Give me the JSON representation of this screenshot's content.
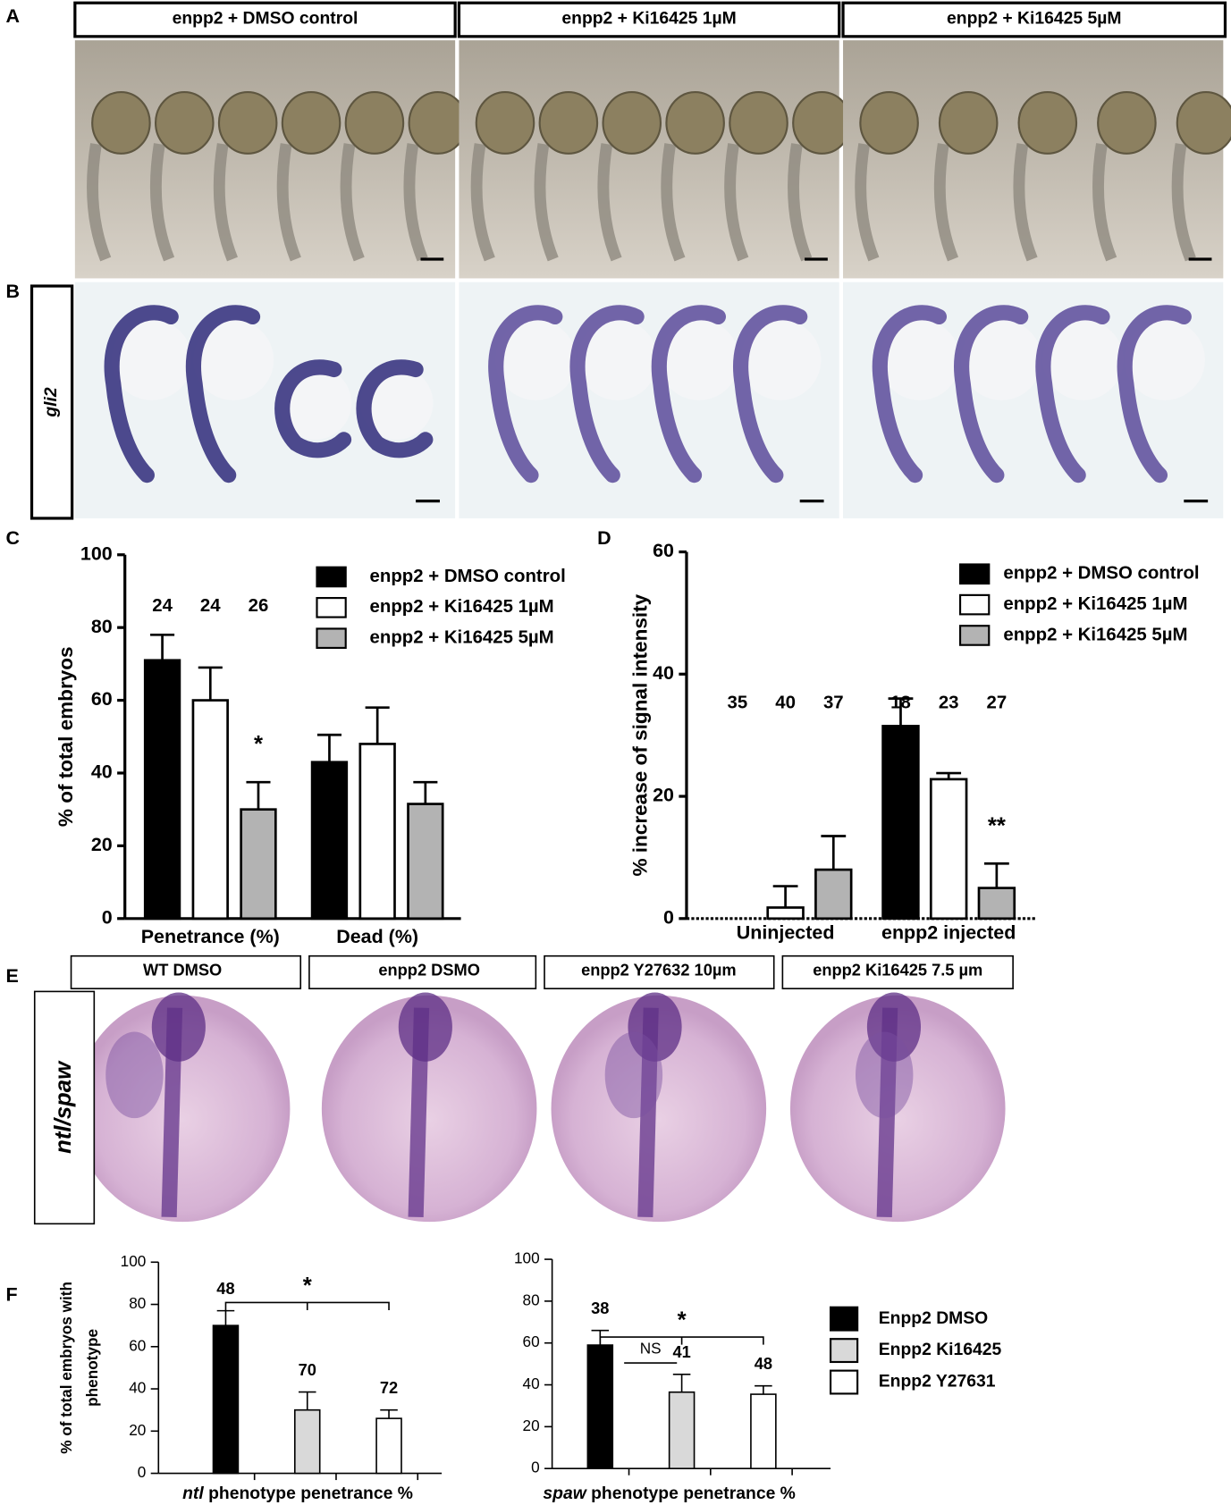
{
  "panels": {
    "labels": [
      "A",
      "B",
      "C",
      "D",
      "E",
      "F"
    ]
  },
  "panel_a": {
    "conditions": [
      "enpp2 + DMSO control",
      "enpp2  + Ki16425 1µM",
      "enpp2 +  Ki16425 5µM"
    ]
  },
  "panel_b": {
    "probe": "gli2"
  },
  "panel_e": {
    "conditions": [
      "WT DMSO",
      "enpp2 DSMO",
      "enpp2 Y27632 10µm",
      "enpp2  Ki16425 7.5 µm"
    ],
    "probe": "ntl/spaw"
  },
  "chart_data": [
    {
      "type": "bar",
      "ylabel": "% of total embryos",
      "categories": [
        "Penetrance (%)",
        "Dead (%)"
      ],
      "ylim": [
        0,
        100
      ],
      "yticks": [
        0,
        20,
        40,
        60,
        80,
        100
      ],
      "legend": true,
      "series": [
        {
          "name": "enpp2  + DMSO control",
          "color": "#000000",
          "values": [
            71,
            43
          ],
          "errors": [
            7,
            7.5
          ],
          "n": [
            24,
            null
          ]
        },
        {
          "name": "enpp2  + Ki16425 1µM",
          "color": "#ffffff",
          "values": [
            60,
            48
          ],
          "errors": [
            9,
            10
          ],
          "n": [
            24,
            null
          ]
        },
        {
          "name": "enpp2 +  Ki16425 5µM",
          "color": "#b3b3b3",
          "values": [
            30,
            31.5
          ],
          "errors": [
            7.5,
            6
          ],
          "n": [
            26,
            null
          ],
          "significance": [
            "*",
            null
          ]
        }
      ]
    },
    {
      "type": "bar",
      "ylabel": "% increase of signal intensity",
      "categories": [
        "Uninjected",
        "enpp2 injected"
      ],
      "ylim": [
        0,
        60
      ],
      "yticks": [
        0,
        20,
        40,
        60
      ],
      "legend": true,
      "series": [
        {
          "name": "enpp2  + DMSO control",
          "color": "#000000",
          "values": [
            0,
            31.5
          ],
          "errors": [
            0,
            4.5
          ],
          "n": [
            35,
            18
          ]
        },
        {
          "name": "enpp2  + Ki16425 1µM",
          "color": "#ffffff",
          "values": [
            1.8,
            22.8
          ],
          "errors": [
            3.5,
            1
          ],
          "n": [
            40,
            23
          ]
        },
        {
          "name": "enpp2 +  Ki16425 5µM",
          "color": "#b3b3b3",
          "values": [
            8,
            5
          ],
          "errors": [
            5.5,
            4
          ],
          "n": [
            37,
            27
          ],
          "significance": [
            null,
            "**"
          ]
        }
      ]
    },
    {
      "type": "bar",
      "ylabel": [
        "% of total embryos with",
        "phenotype"
      ],
      "xlabel_gene": "ntl",
      "xlabel": " phenotype penetrance %",
      "categories": [
        null
      ],
      "ylim": [
        0,
        100
      ],
      "yticks": [
        0,
        20,
        40,
        60,
        80,
        100
      ],
      "legend": false,
      "brackets": [
        {
          "label": "*"
        }
      ],
      "series": [
        {
          "name": "Enpp2 DMSO",
          "color": "#000000",
          "values": [
            70
          ],
          "errors": [
            7
          ],
          "n": [
            48
          ]
        },
        {
          "name": "Enpp2 Ki16425",
          "color": "#d9d9d9",
          "values": [
            30
          ],
          "errors": [
            8.5
          ],
          "n": [
            70
          ]
        },
        {
          "name": "Enpp2 Y27631",
          "color": "#ffffff",
          "values": [
            26
          ],
          "errors": [
            4
          ],
          "n": [
            72
          ]
        }
      ]
    },
    {
      "type": "bar",
      "xlabel_gene": "spaw",
      "xlabel": " phenotype penetrance %",
      "categories": [
        null
      ],
      "ylim": [
        0,
        100
      ],
      "yticks": [
        0,
        20,
        40,
        60,
        80,
        100
      ],
      "legend": true,
      "brackets": [
        {
          "label": "NS"
        },
        {
          "label": "*"
        }
      ],
      "series": [
        {
          "name": "Enpp2 DMSO",
          "color": "#000000",
          "values": [
            59
          ],
          "errors": [
            7
          ],
          "n": [
            38
          ]
        },
        {
          "name": "Enpp2 Ki16425",
          "color": "#d9d9d9",
          "values": [
            36.5
          ],
          "errors": [
            8.5
          ],
          "n": [
            41
          ]
        },
        {
          "name": "Enpp2 Y27631",
          "color": "#ffffff",
          "values": [
            35.5
          ],
          "errors": [
            4
          ],
          "n": [
            48
          ]
        }
      ]
    }
  ]
}
